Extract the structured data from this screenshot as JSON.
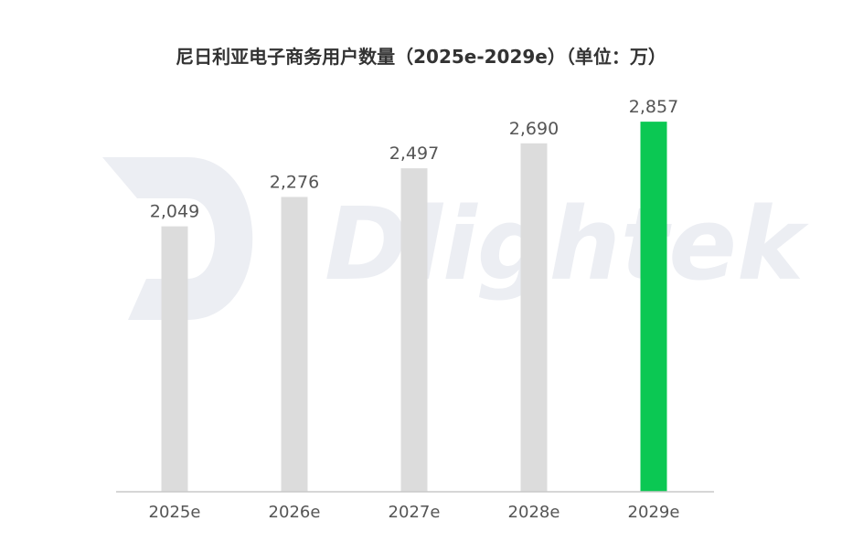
{
  "chart_data": {
    "type": "bar",
    "title": "尼日利亚电子商务用户数量（2025e-2029e）（单位：万）",
    "categories": [
      "2025e",
      "2026e",
      "2027e",
      "2028e",
      "2029e"
    ],
    "values": [
      2049,
      2276,
      2497,
      2690,
      2857
    ],
    "value_labels": [
      "2,049",
      "2,276",
      "2,497",
      "2,690",
      "2,857"
    ],
    "ylim": [
      0,
      3500
    ],
    "grid": false,
    "legend": "none",
    "highlight_index": 4,
    "colors": {
      "bar": "#dcdcdc",
      "highlight": "#0bc853",
      "axis": "#c8c8c8"
    }
  },
  "watermark": {
    "text": "Dlightek"
  }
}
